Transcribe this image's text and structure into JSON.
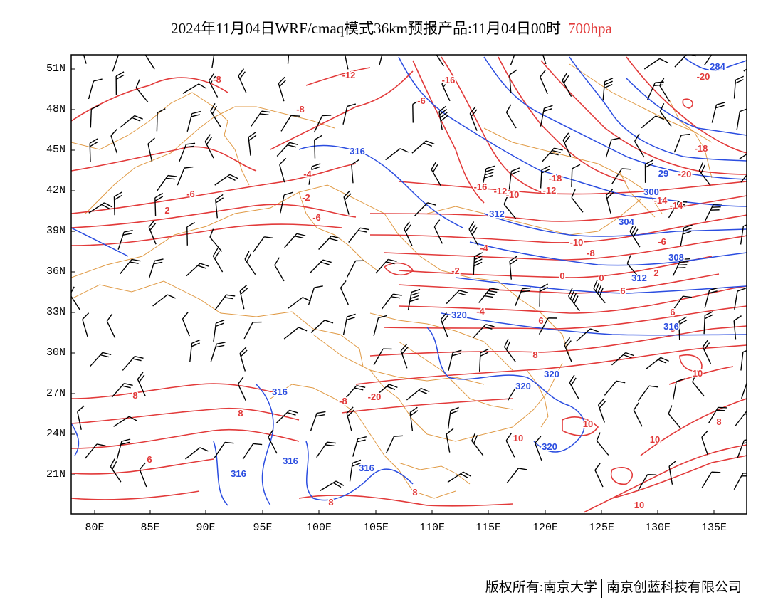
{
  "title": {
    "main": "2024年11月04日WRF/cmaq模式36km预报产品:11月04日00时",
    "level": "700hpa"
  },
  "axes": {
    "lat_labels": [
      "51N",
      "48N",
      "45N",
      "42N",
      "39N",
      "36N",
      "33N",
      "30N",
      "27N",
      "24N",
      "21N"
    ],
    "lon_labels": [
      "80E",
      "85E",
      "90E",
      "95E",
      "100E",
      "105E",
      "110E",
      "115E",
      "120E",
      "125E",
      "130E",
      "135E"
    ]
  },
  "colors": {
    "temperature_contour": "#e23a3a",
    "height_contour": "#2b4de0",
    "border": "#e09a45",
    "wind_barb": "#000000"
  },
  "contour_labels": {
    "temperature": [
      "-8",
      "-12",
      "-16",
      "-6",
      "-8",
      "-6",
      "-4",
      "-2",
      "2",
      "-6",
      "-16",
      "-20",
      "-18",
      "-20",
      "-18",
      "-12",
      "-14",
      "-14",
      "-10",
      "-12",
      "-10",
      "-8",
      "-6",
      "-4",
      "-2",
      "0",
      "0",
      "2",
      "6",
      "-4",
      "6",
      "8",
      "6",
      "8",
      "10",
      "8",
      "10",
      "10",
      "10",
      "10",
      "8",
      "8",
      "8",
      "8",
      "6",
      "-8",
      "-20"
    ],
    "height": [
      "284",
      "316",
      "29",
      "300",
      "312",
      "304",
      "308",
      "312",
      "316",
      "320",
      "320",
      "320",
      "320",
      "316",
      "316",
      "316",
      "316"
    ]
  },
  "copyright": {
    "left": "版权所有:南京大学",
    "right": "南京创蓝科技有限公司"
  }
}
